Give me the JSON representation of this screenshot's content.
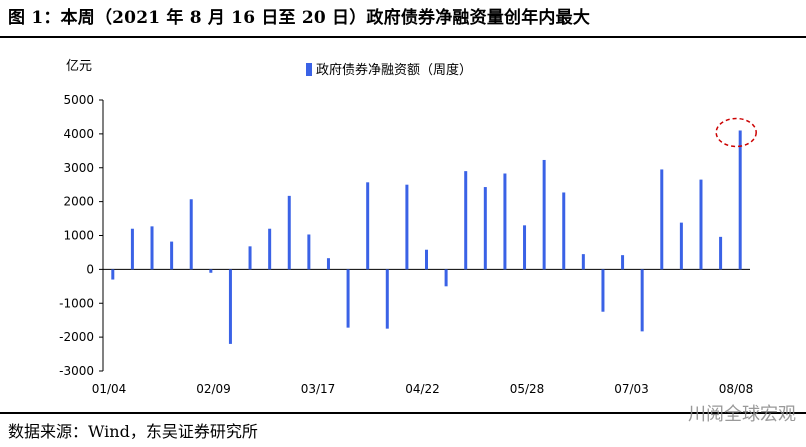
{
  "title": "图 1：本周（2021 年 8 月 16 日至 20 日）政府债券净融资量创年内最大",
  "source": "数据来源：Wind，东吴证券研究所",
  "watermark": "川阅全球宏观",
  "chart_data": {
    "type": "bar",
    "ylabel": "亿元",
    "ylim": [
      -3000,
      5000
    ],
    "yticks": [
      5000,
      4000,
      3000,
      2000,
      1000,
      0,
      -1000,
      -2000,
      -3000
    ],
    "x_tick_labels": [
      "01/04",
      "02/09",
      "03/17",
      "04/22",
      "05/28",
      "07/03",
      "08/08"
    ],
    "legend": "top-center",
    "bar_color": "#3a62e6",
    "highlight_color": "#cc0000",
    "series": [
      {
        "name": "政府债券净融资额（周度）",
        "values": [
          -300,
          1200,
          1270,
          820,
          2070,
          -100,
          -2200,
          680,
          1200,
          2170,
          1030,
          330,
          -1720,
          2570,
          -1750,
          2500,
          580,
          -500,
          2900,
          2430,
          2830,
          1300,
          3230,
          2270,
          450,
          -1250,
          420,
          -1830,
          2950,
          1380,
          2650,
          960,
          4100
        ]
      }
    ]
  }
}
